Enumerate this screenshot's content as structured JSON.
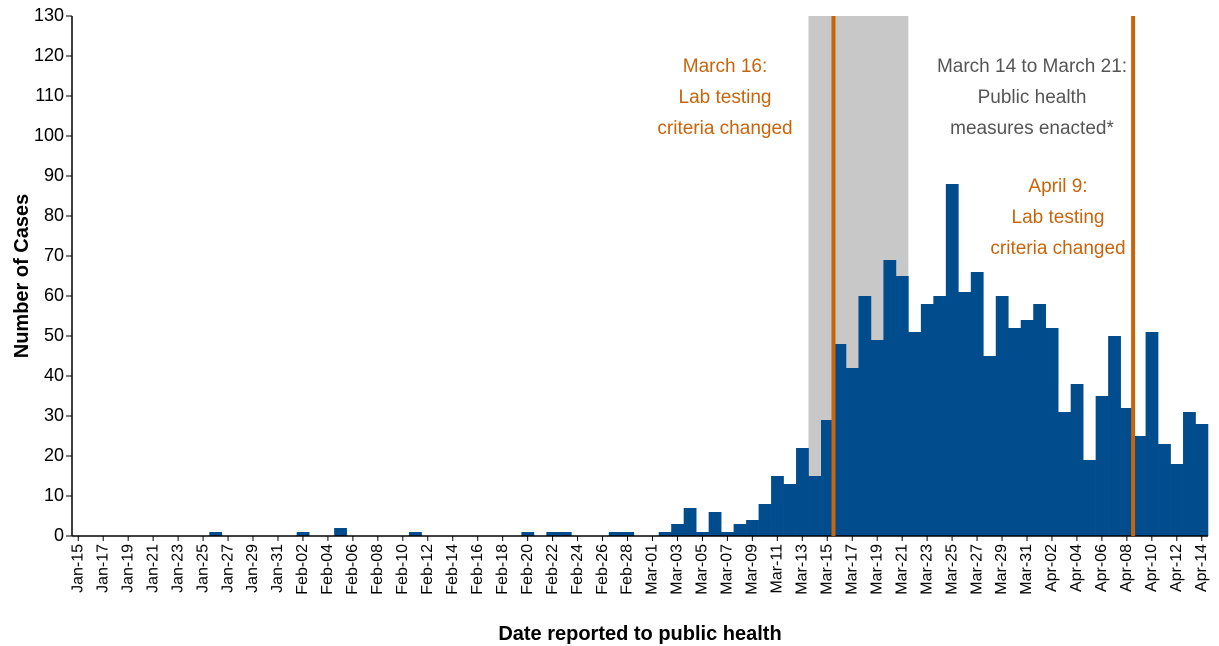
{
  "chart_data": {
    "type": "bar",
    "x_label": "Date reported to public health",
    "y_label": "Number of Cases",
    "categories": [
      "Jan-15",
      null,
      "Jan-17",
      null,
      "Jan-19",
      null,
      "Jan-21",
      null,
      "Jan-23",
      null,
      "Jan-25",
      null,
      "Jan-27",
      null,
      "Jan-29",
      null,
      "Jan-31",
      null,
      "Feb-02",
      null,
      "Feb-04",
      null,
      "Feb-06",
      null,
      "Feb-08",
      null,
      "Feb-10",
      null,
      "Feb-12",
      null,
      "Feb-14",
      null,
      "Feb-16",
      null,
      "Feb-18",
      null,
      "Feb-20",
      null,
      "Feb-22",
      null,
      "Feb-24",
      null,
      "Feb-26",
      null,
      "Feb-28",
      null,
      "Mar-01",
      null,
      "Mar-03",
      null,
      "Mar-05",
      null,
      "Mar-07",
      null,
      "Mar-09",
      null,
      "Mar-11",
      null,
      "Mar-13",
      null,
      "Mar-15",
      null,
      "Mar-17",
      null,
      "Mar-19",
      null,
      "Mar-21",
      null,
      "Mar-23",
      null,
      "Mar-25",
      null,
      "Mar-27",
      null,
      "Mar-29",
      null,
      "Mar-31",
      null,
      "Apr-02",
      null,
      "Apr-04",
      null,
      "Apr-06",
      null,
      "Apr-08",
      null,
      "Apr-10",
      null,
      "Apr-12",
      null,
      "Apr-14"
    ],
    "values": [
      0,
      0,
      0,
      0,
      0,
      0,
      0,
      0,
      0,
      0,
      0,
      1,
      0,
      0,
      0,
      0,
      0,
      0,
      1,
      0,
      0,
      2,
      0,
      0,
      0,
      0,
      0,
      1,
      0,
      0,
      0,
      0,
      0,
      0,
      0,
      0,
      1,
      0,
      1,
      1,
      0,
      0,
      0,
      1,
      1,
      0,
      0,
      1,
      3,
      7,
      1,
      6,
      1,
      3,
      4,
      8,
      15,
      13,
      22,
      15,
      29,
      48,
      42,
      60,
      49,
      69,
      65,
      51,
      58,
      60,
      88,
      61,
      66,
      45,
      60,
      52,
      54,
      58,
      52,
      31,
      38,
      19,
      35,
      50,
      32,
      25,
      51,
      23,
      18,
      31,
      28
    ],
    "color": "#004c8c",
    "ylim": [
      0,
      130
    ],
    "yticks": [
      0,
      10,
      20,
      30,
      40,
      50,
      60,
      70,
      80,
      90,
      100,
      110,
      120,
      130
    ],
    "shaded_span": {
      "from": 59,
      "to": 66,
      "color": "#c8c8c8"
    },
    "vlines": [
      {
        "x": 60.5,
        "color": "#c8640a"
      },
      {
        "x": 84.5,
        "color": "#c8640a"
      }
    ],
    "annotations": [
      {
        "lines": [
          "March 16:",
          "Lab testing",
          "criteria changed"
        ],
        "color": "#c8640a"
      },
      {
        "lines": [
          "March 14 to March 21:",
          "Public health",
          "measures enacted*"
        ],
        "color": "#555555"
      },
      {
        "lines": [
          "April 9:",
          "Lab testing",
          "criteria changed"
        ],
        "color": "#c8640a"
      }
    ]
  }
}
